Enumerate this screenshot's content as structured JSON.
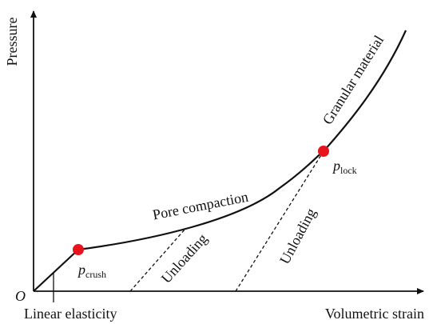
{
  "diagram": {
    "axis_y_label": "Pressure",
    "axis_x_label": "Volumetric strain",
    "origin_label": "O",
    "region_labels": {
      "linear_elasticity": "Linear elasticity",
      "pore_compaction": "Pore compaction",
      "granular_material": "Granular material",
      "unloading_1": "Unloading",
      "unloading_2": "Unloading"
    },
    "points": {
      "p_crush": {
        "symbol": "p",
        "subscript": "crush"
      },
      "p_lock": {
        "symbol": "p",
        "subscript": "lock"
      }
    },
    "colors": {
      "line": "#111111",
      "point_marker": "#e8141c",
      "background": "#ffffff"
    }
  }
}
